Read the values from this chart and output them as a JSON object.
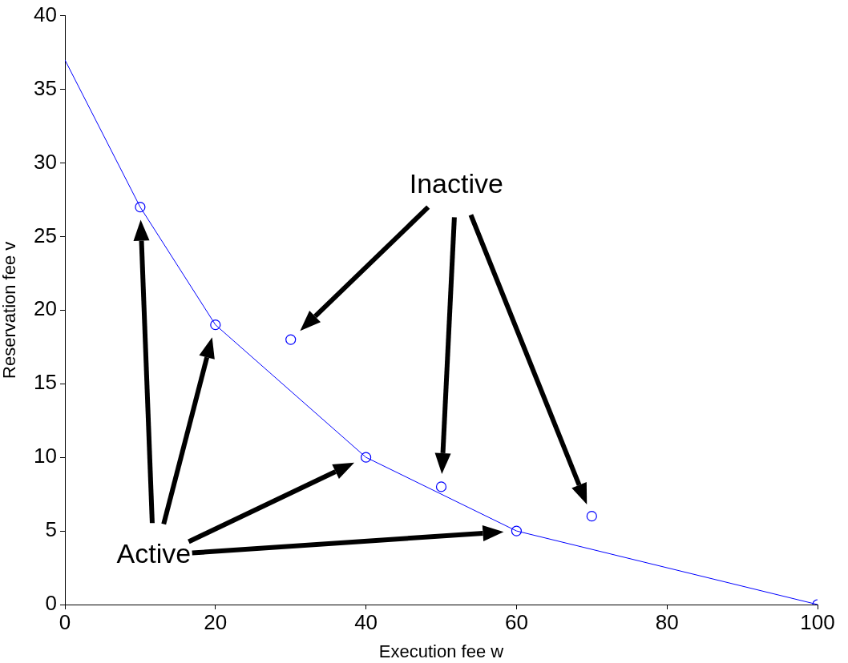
{
  "chart_data": {
    "type": "line",
    "xlabel": "Execution fee w",
    "ylabel": "Reservation fee v",
    "series": [
      {
        "type": "line",
        "x": [
          0,
          10,
          20,
          40,
          60,
          100
        ],
        "values": [
          37,
          27,
          19,
          10,
          5,
          0
        ],
        "color": "#0000ff",
        "marker": "none",
        "line_style": "solid"
      },
      {
        "type": "scatter",
        "x": [
          10,
          20,
          30,
          40,
          50,
          60,
          70,
          100
        ],
        "values": [
          27,
          19,
          18,
          10,
          8,
          5,
          6,
          0
        ],
        "color": "#0000ff",
        "marker": "circle"
      }
    ],
    "annotations": [
      "Active",
      "Inactive"
    ],
    "xlim": [
      0,
      100
    ],
    "xticks": [
      0,
      20,
      40,
      60,
      80,
      100
    ],
    "ylim": [
      0,
      40
    ],
    "yticks": [
      0,
      5,
      10,
      15,
      20,
      25,
      30,
      35,
      40
    ],
    "grid": false,
    "legend": false
  }
}
